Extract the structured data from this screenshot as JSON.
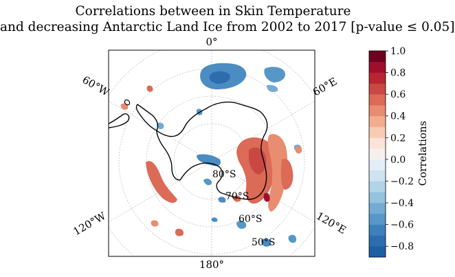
{
  "title": {
    "line1": "Correlations between in Skin Temperature",
    "line2": "and decreasing Antarctic Land Ice from 2002 to 2017 [p-value ≤ 0.05]"
  },
  "map": {
    "projection": "south-polar-stereographic",
    "longitude_labels": [
      "0°",
      "60°E",
      "120°E",
      "180°",
      "120°W",
      "60°W"
    ],
    "latitude_labels": [
      "80°S",
      "70°S",
      "60°S",
      "50°S"
    ],
    "gridlines": true,
    "coastline": "Antarctica"
  },
  "colorbar": {
    "label": "Correlations",
    "ticks": [
      "1.0",
      "0.8",
      "0.6",
      "0.4",
      "0.2",
      "0.0",
      "−0.2",
      "−0.4",
      "−0.6",
      "−0.8"
    ],
    "range": [
      -0.9,
      1.0
    ],
    "levels": 19,
    "colors": [
      "#1e5ea2",
      "#2d6dad",
      "#3d80bb",
      "#5697c8",
      "#73abd3",
      "#93c3de",
      "#b1d4e7",
      "#cde3ef",
      "#e2eef5",
      "#f5f0ed",
      "#fbe3d8",
      "#f8cbb3",
      "#f3ad8e",
      "#e88d6f",
      "#db6a56",
      "#c94842",
      "#b72632",
      "#9f0f2b",
      "#6f0020"
    ]
  },
  "chart_data": {
    "type": "heatmap",
    "title": "Correlations between in Skin Temperature and decreasing Antarctic Land Ice from 2002 to 2017 [p-value ≤ 0.05]",
    "colorbar_label": "Correlations",
    "colorbar_range": [
      -0.9,
      1.0
    ],
    "colorbar_ticks": [
      1.0,
      0.8,
      0.6,
      0.4,
      0.2,
      0.0,
      -0.2,
      -0.4,
      -0.6,
      -0.8
    ],
    "map_longitude_labels": [
      "0°",
      "60°E",
      "120°E",
      "180°",
      "120°W",
      "60°W"
    ],
    "map_latitude_labels": [
      "80°S",
      "70°S",
      "60°S",
      "50°S"
    ]
  }
}
